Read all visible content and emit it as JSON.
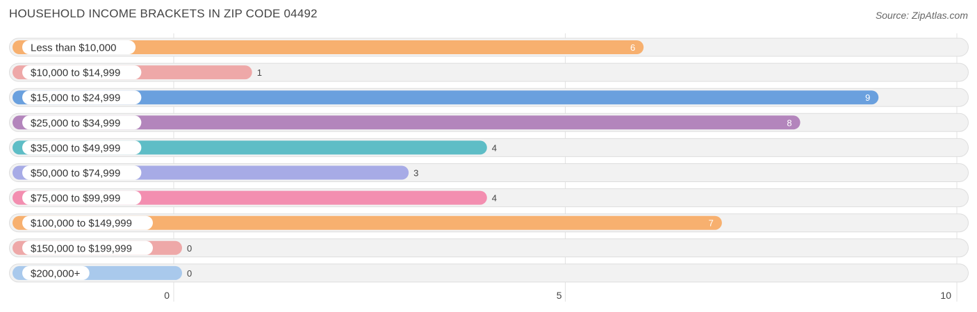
{
  "title": "HOUSEHOLD INCOME BRACKETS IN ZIP CODE 04492",
  "source": "Source: ZipAtlas.com",
  "chart_data": {
    "type": "bar",
    "orientation": "horizontal",
    "categories": [
      "Less than $10,000",
      "$10,000 to $14,999",
      "$15,000 to $24,999",
      "$25,000 to $34,999",
      "$35,000 to $49,999",
      "$50,000 to $74,999",
      "$75,000 to $99,999",
      "$100,000 to $149,999",
      "$150,000 to $199,999",
      "$200,000+"
    ],
    "values": [
      6,
      1,
      9,
      8,
      4,
      3,
      4,
      7,
      0,
      0
    ],
    "colors": [
      "#f7b06f",
      "#eea8a8",
      "#6aa0de",
      "#b385bc",
      "#5ebdc6",
      "#a7abe6",
      "#f38eb0",
      "#f7b06f",
      "#eea8a8",
      "#a9c9ec"
    ],
    "xlim": [
      0,
      10
    ],
    "xticks": [
      "0",
      "5",
      "10"
    ],
    "grid": true
  }
}
